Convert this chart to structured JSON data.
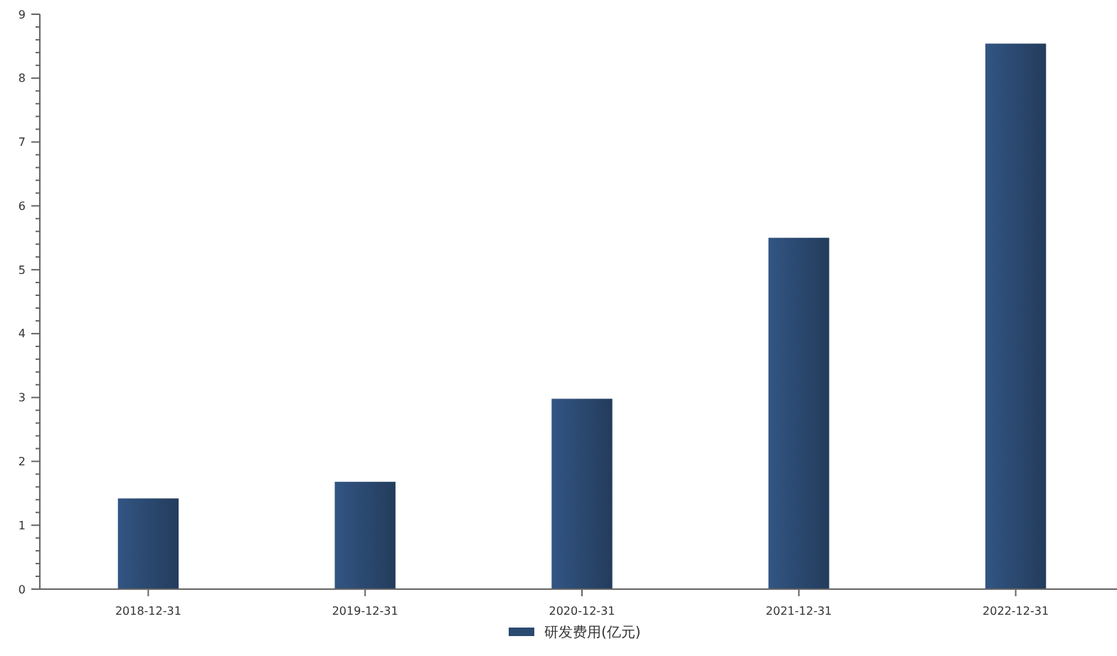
{
  "chart_data": {
    "type": "bar",
    "categories": [
      "2018-12-31",
      "2019-12-31",
      "2020-12-31",
      "2021-12-31",
      "2022-12-31"
    ],
    "series": [
      {
        "name": "研发费用(亿元)",
        "color": "#2b4a72",
        "values": [
          1.42,
          1.68,
          2.98,
          5.5,
          8.54
        ]
      }
    ],
    "ylim": [
      0,
      9
    ],
    "yticks": [
      0,
      {
        "value": 0.2,
        "label": null
      },
      {
        "value": 0.4,
        "label": null
      },
      {
        "value": 0.6,
        "label": null
      },
      {
        "value": 0.8,
        "label": null
      },
      1,
      {
        "value": 1.2,
        "label": null
      },
      {
        "value": 1.4,
        "label": null
      },
      {
        "value": 1.6,
        "label": null
      },
      {
        "value": 1.8,
        "label": null
      },
      2,
      {
        "value": 2.2,
        "label": null
      },
      {
        "value": 2.4,
        "label": null
      },
      {
        "value": 2.6,
        "label": null
      },
      {
        "value": 2.8,
        "label": null
      },
      3,
      {
        "value": 3.2,
        "label": null
      },
      {
        "value": 3.4,
        "label": null
      },
      {
        "value": 3.6,
        "label": null
      },
      {
        "value": 3.8,
        "label": null
      },
      4,
      {
        "value": 4.2,
        "label": null
      },
      {
        "value": 4.4,
        "label": null
      },
      {
        "value": 4.6,
        "label": null
      },
      {
        "value": 4.8,
        "label": null
      },
      5,
      {
        "value": 5.2,
        "label": null
      },
      {
        "value": 5.4,
        "label": null
      },
      {
        "value": 5.6,
        "label": null
      },
      {
        "value": 5.8,
        "label": null
      },
      6,
      {
        "value": 6.2,
        "label": null
      },
      {
        "value": 6.4,
        "label": null
      },
      {
        "value": 6.6,
        "label": null
      },
      {
        "value": 6.8,
        "label": null
      },
      7,
      {
        "value": 7.2,
        "label": null
      },
      {
        "value": 7.4,
        "label": null
      },
      {
        "value": 7.6,
        "label": null
      },
      {
        "value": 7.8,
        "label": null
      },
      8,
      {
        "value": 8.2,
        "label": null
      },
      {
        "value": 8.4,
        "label": null
      },
      {
        "value": 8.6,
        "label": null
      },
      {
        "value": 8.8,
        "label": null
      },
      9
    ],
    "grid": false,
    "legend": "bottom"
  }
}
